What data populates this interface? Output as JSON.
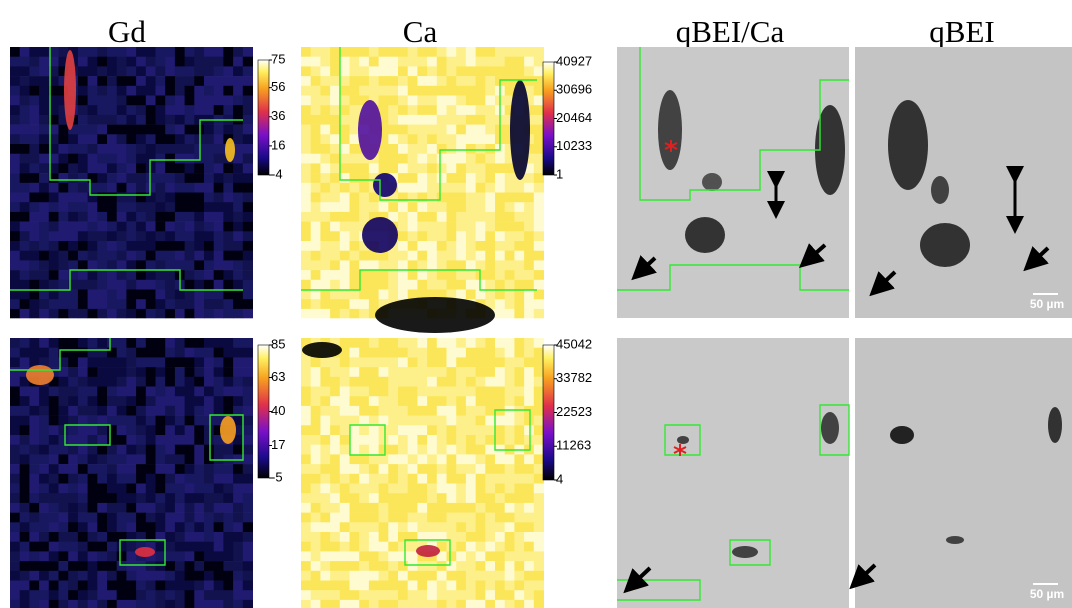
{
  "columns": [
    "Gd",
    "Ca",
    "qBEI/Ca",
    "qBEI"
  ],
  "rows": [
    {
      "gd_colorbar": {
        "ticks": [
          75,
          56,
          36,
          16,
          -4
        ]
      },
      "ca_colorbar": {
        "ticks": [
          40927,
          30696,
          20464,
          10233,
          1
        ]
      },
      "scale_bar": "50 µm"
    },
    {
      "gd_colorbar": {
        "ticks": [
          85,
          63,
          40,
          17,
          -5
        ]
      },
      "ca_colorbar": {
        "ticks": [
          45042,
          33782,
          22523,
          11263,
          4
        ]
      },
      "scale_bar": "50 µm"
    }
  ]
}
